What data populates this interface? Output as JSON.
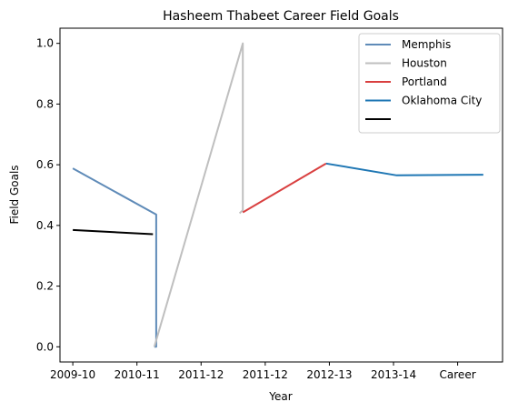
{
  "chart_data": {
    "type": "line",
    "title": "Hasheem Thabeet Career Field Goals",
    "xlabel": "Year",
    "ylabel": "Field Goals",
    "x_tick_labels": [
      "2009-10",
      "2010-11",
      "2011-12",
      "2011-12",
      "2012-13",
      "2013-14",
      "Career"
    ],
    "x_range": [
      -0.2,
      6.7
    ],
    "ylim": [
      -0.05,
      1.05
    ],
    "y_ticks": [
      0.0,
      0.2,
      0.4,
      0.6,
      0.8,
      1.0
    ],
    "y_tick_labels": [
      "0.0",
      "0.2",
      "0.4",
      "0.6",
      "0.8",
      "1.0"
    ],
    "grid": false,
    "legend_position": "top-right",
    "series": [
      {
        "name": "Memphis",
        "color": "#5f8bb8",
        "x": [
          0,
          1.3,
          1.3,
          1.27
        ],
        "y": [
          0.588,
          0.436,
          0.0,
          0.0
        ]
      },
      {
        "name": "Houston",
        "color": "#bfbfbf",
        "x": [
          1.27,
          2.65,
          2.65,
          2.6
        ],
        "y": [
          0.0,
          1.0,
          0.45,
          0.44
        ]
      },
      {
        "name": "Portland",
        "color": "#d94040",
        "x": [
          2.65,
          3.95
        ],
        "y": [
          0.443,
          0.604
        ]
      },
      {
        "name": "Oklahoma City",
        "color": "#1f77b4",
        "x": [
          3.95,
          5.05,
          6.4
        ],
        "y": [
          0.604,
          0.565,
          0.567
        ]
      },
      {
        "name": "",
        "color": "#000000",
        "x": [
          0,
          1.25
        ],
        "y": [
          0.385,
          0.371
        ]
      }
    ]
  }
}
